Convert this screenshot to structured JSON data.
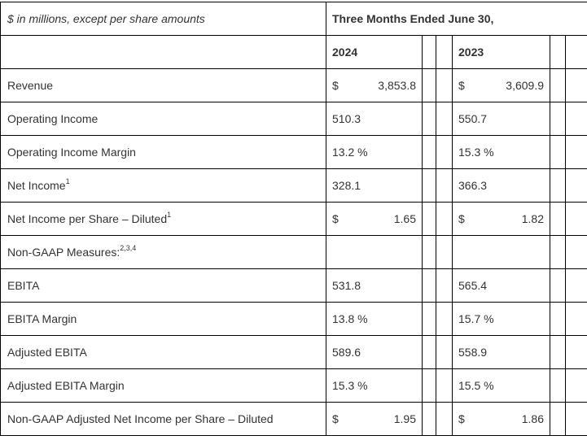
{
  "header": {
    "units_label": "$ in millions, except per share amounts",
    "period_label": "Three Months Ended June 30,",
    "year_current": "2024",
    "year_prior": "2023"
  },
  "rows": [
    {
      "label": "Revenue",
      "sup": "",
      "currency_current": "$",
      "current": "3,853.8",
      "currency_prior": "$",
      "prior": "3,609.9"
    },
    {
      "label": "Operating Income",
      "sup": "",
      "current": "510.3",
      "prior": "550.7"
    },
    {
      "label": "Operating Income Margin",
      "sup": "",
      "current": "13.2 %",
      "prior": "15.3 %"
    },
    {
      "label": "Net Income",
      "sup": "1",
      "current": "328.1",
      "prior": "366.3"
    },
    {
      "label": "Net Income per Share – Diluted",
      "sup": "1",
      "currency_current": "$",
      "current": "1.65",
      "currency_prior": "$",
      "prior": "1.82"
    },
    {
      "label": "Non-GAAP Measures:",
      "sup": "2,3,4",
      "current": "",
      "prior": ""
    },
    {
      "label": "EBITA",
      "sup": "",
      "current": "531.8",
      "prior": "565.4"
    },
    {
      "label": "EBITA Margin",
      "sup": "",
      "current": "13.8 %",
      "prior": "15.7 %"
    },
    {
      "label": "Adjusted EBITA",
      "sup": "",
      "current": "589.6",
      "prior": "558.9"
    },
    {
      "label": "Adjusted EBITA Margin",
      "sup": "",
      "current": "15.3 %",
      "prior": "15.5 %"
    },
    {
      "label": "Non-GAAP Adjusted Net Income per Share – Diluted",
      "sup": "",
      "currency_current": "$",
      "current": "1.95",
      "currency_prior": "$",
      "prior": "1.86"
    }
  ]
}
